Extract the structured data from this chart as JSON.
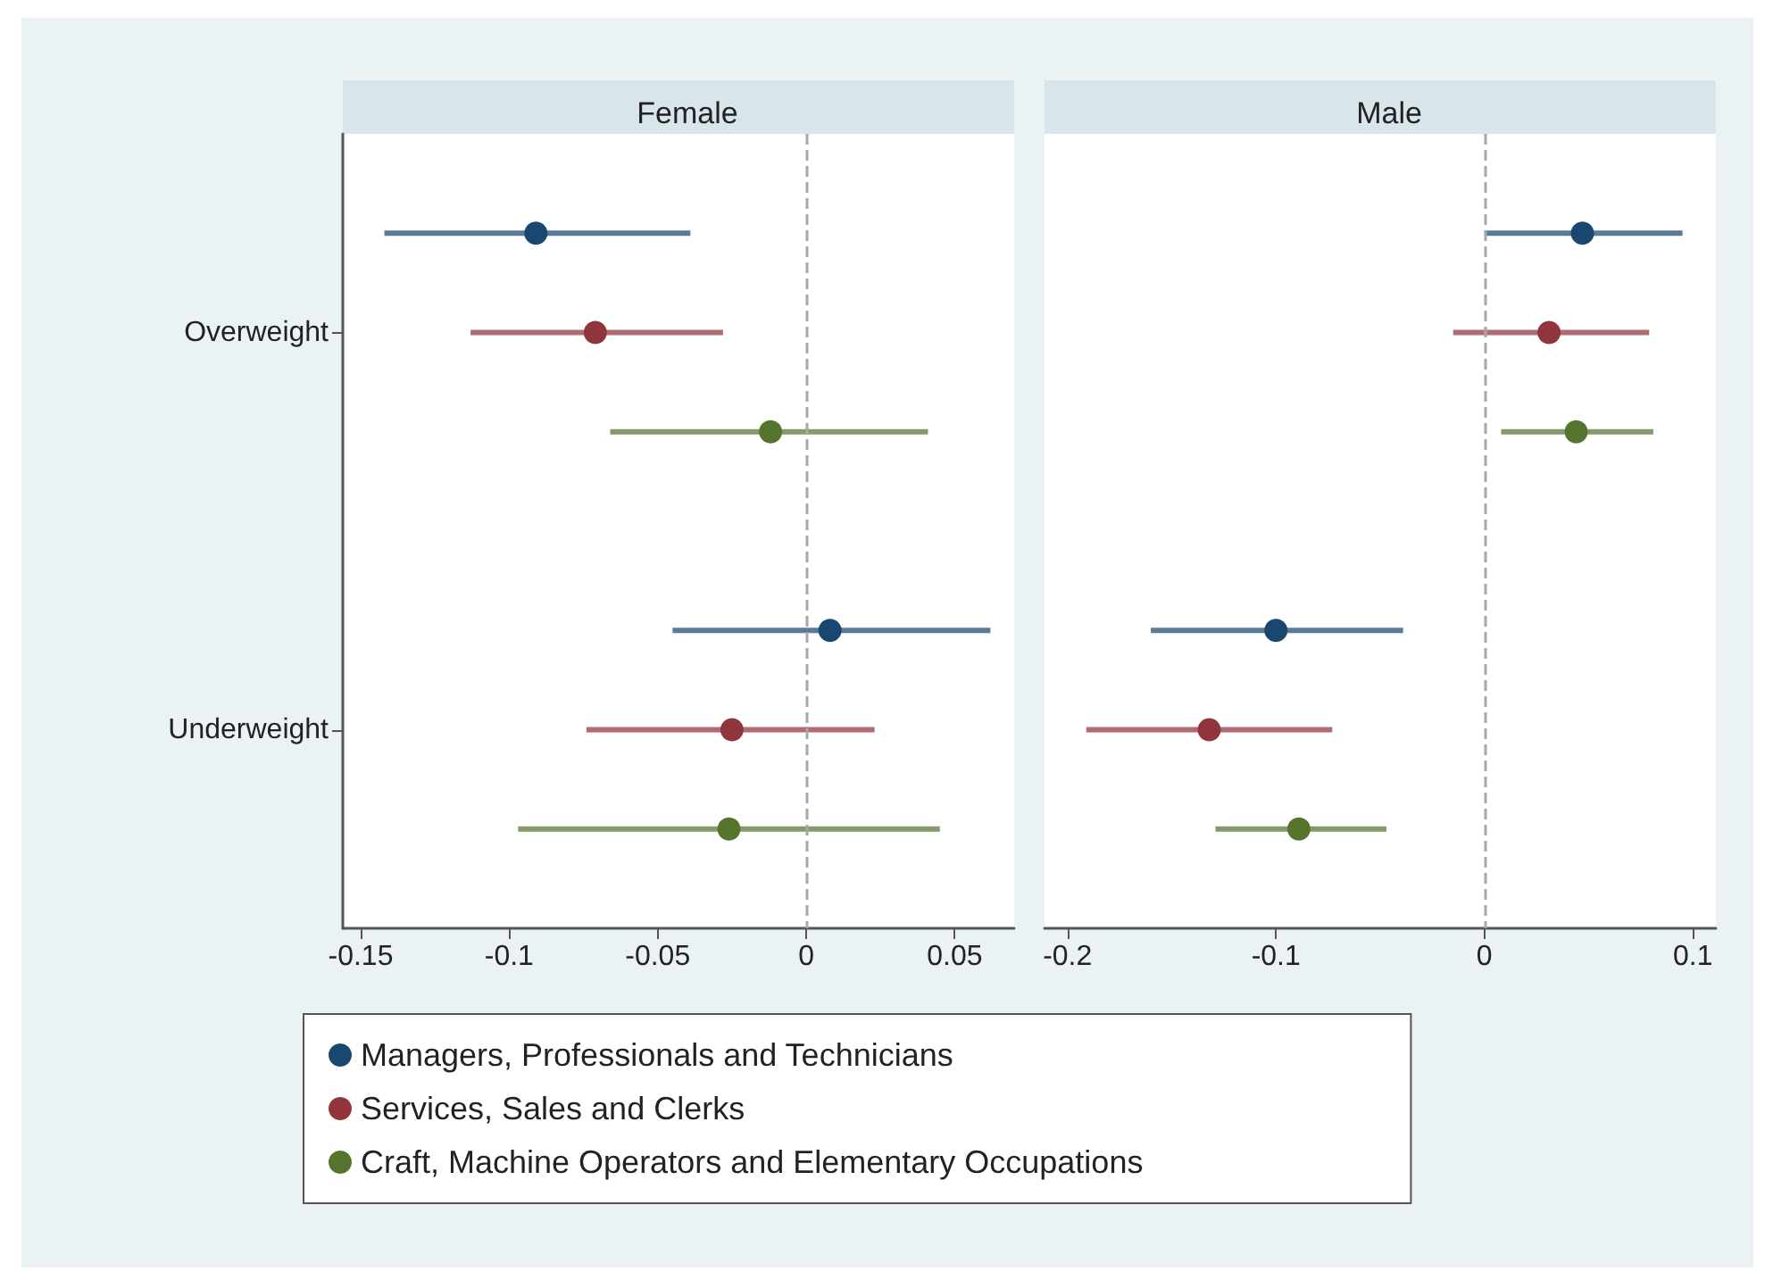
{
  "chart_data": [
    {
      "type": "scatter",
      "title": "Female",
      "orientation": "horizontal",
      "categories": [
        "Overweight",
        "Underweight"
      ],
      "xlim": [
        -0.156,
        0.07
      ],
      "xticks": [
        -0.15,
        -0.1,
        -0.05,
        0,
        0.05
      ],
      "marker": "circle",
      "legend": "bottom",
      "ref_lines": [
        {
          "axis": "x",
          "value": 0,
          "line_style": "dashed",
          "color": "#a8a8a8"
        }
      ],
      "series": [
        {
          "name": "Managers, Professionals and Technicians",
          "color": "#1a476f",
          "values": [
            -0.091,
            0.008
          ],
          "errors": [
            [
              -0.142,
              -0.039
            ],
            [
              -0.045,
              0.062
            ]
          ]
        },
        {
          "name": "Services, Sales and Clerks",
          "color": "#90353b",
          "values": [
            -0.071,
            -0.025
          ],
          "errors": [
            [
              -0.113,
              -0.028
            ],
            [
              -0.074,
              0.023
            ]
          ]
        },
        {
          "name": "Craft, Machine Operators and Elementary Occupations",
          "color": "#55752f",
          "values": [
            -0.012,
            -0.026
          ],
          "errors": [
            [
              -0.066,
              0.041
            ],
            [
              -0.097,
              0.045
            ]
          ]
        }
      ]
    },
    {
      "type": "scatter",
      "title": "Male",
      "orientation": "horizontal",
      "categories": [
        null,
        null
      ],
      "xlim": [
        -0.211,
        0.111
      ],
      "xticks": [
        -0.2,
        -0.1,
        0,
        0.1
      ],
      "marker": "circle",
      "tick_labels": "x",
      "ref_lines": [
        {
          "axis": "x",
          "value": 0,
          "line_style": "dashed",
          "color": "#a8a8a8"
        }
      ],
      "series": [
        {
          "color": "#1a476f",
          "values": [
            0.047,
            -0.1
          ],
          "errors": [
            [
              0,
              0.095
            ],
            [
              -0.16,
              -0.039
            ]
          ]
        },
        {
          "color": "#90353b",
          "values": [
            0.031,
            -0.132
          ],
          "errors": [
            [
              -0.015,
              0.079
            ],
            [
              -0.191,
              -0.073
            ]
          ]
        },
        {
          "color": "#55752f",
          "values": [
            0.044,
            -0.089
          ],
          "errors": [
            [
              0.008,
              0.081
            ],
            [
              -0.129,
              -0.047
            ]
          ]
        }
      ]
    }
  ]
}
